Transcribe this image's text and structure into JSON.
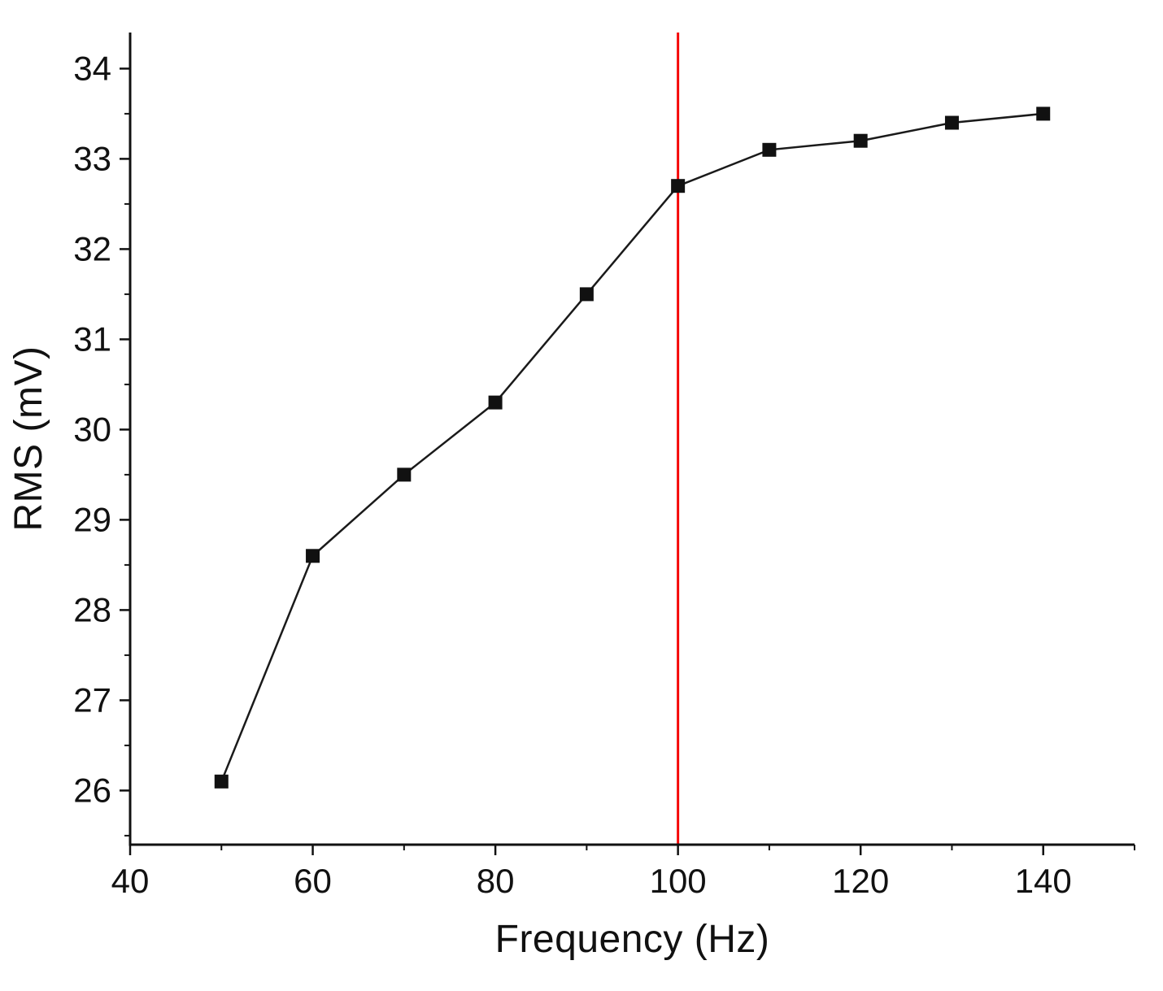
{
  "chart_data": {
    "type": "line",
    "title": "",
    "xlabel": "Frequency (Hz)",
    "ylabel": "RMS (mV)",
    "x": [
      50,
      60,
      70,
      80,
      90,
      100,
      110,
      120,
      130,
      140
    ],
    "y": [
      26.1,
      28.6,
      29.5,
      30.3,
      31.5,
      32.7,
      33.1,
      33.2,
      33.4,
      33.5
    ],
    "series_name": "RMS",
    "xlim": [
      40,
      150
    ],
    "ylim": [
      25.4,
      34.4
    ],
    "x_major_ticks": [
      40,
      60,
      80,
      100,
      120,
      140
    ],
    "x_minor_step": 10,
    "y_major_ticks": [
      26,
      27,
      28,
      29,
      30,
      31,
      32,
      33,
      34
    ],
    "y_minor_step": 0.5,
    "grid": false,
    "legend": false,
    "line_color": "#1a1a1a",
    "marker": "square",
    "marker_color": "#111111",
    "axis_color": "#111111",
    "tick_label_color": "#111111",
    "annotation_vline": {
      "x": 100,
      "color": "#f50808"
    }
  }
}
